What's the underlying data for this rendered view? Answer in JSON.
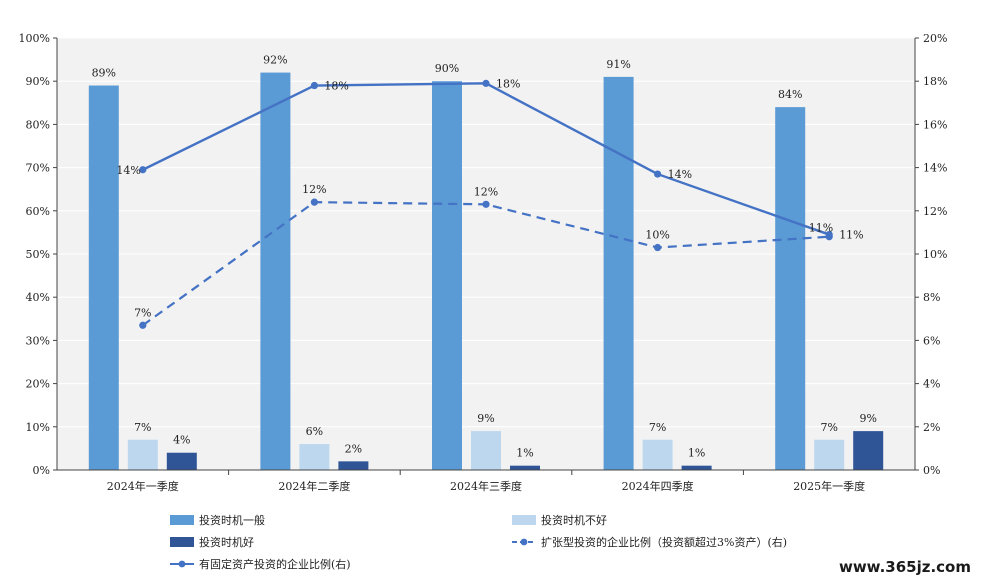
{
  "chart_data": {
    "type": "bar",
    "categories": [
      "2024年一季度",
      "2024年二季度",
      "2024年三季度",
      "2024年四季度",
      "2025年一季度"
    ],
    "left_axis": {
      "ylim": [
        0,
        100
      ],
      "ticks": [
        "0%",
        "10%",
        "20%",
        "30%",
        "40%",
        "50%",
        "60%",
        "70%",
        "80%",
        "90%",
        "100%"
      ]
    },
    "right_axis": {
      "ylim": [
        0,
        20
      ],
      "ticks": [
        "0%",
        "2%",
        "4%",
        "6%",
        "8%",
        "10%",
        "12%",
        "14%",
        "16%",
        "18%",
        "20%"
      ]
    },
    "series": [
      {
        "name": "投资时机一般",
        "kind": "bar",
        "axis": "left",
        "color": "#5b9bd5",
        "values": [
          89,
          92,
          90,
          91,
          84
        ],
        "labels": [
          "89%",
          "92%",
          "90%",
          "91%",
          "84%"
        ]
      },
      {
        "name": "投资时机不好",
        "kind": "bar",
        "axis": "left",
        "color": "#bdd7ee",
        "values": [
          7,
          6,
          9,
          7,
          7
        ],
        "labels": [
          "7%",
          "6%",
          "9%",
          "7%",
          "7%"
        ]
      },
      {
        "name": "投资时机好",
        "kind": "bar",
        "axis": "left",
        "color": "#2f5597",
        "values": [
          4,
          2,
          1,
          1,
          9
        ],
        "labels": [
          "4%",
          "2%",
          "1%",
          "1%",
          "9%"
        ]
      },
      {
        "name": "扩张型投资的企业比例（投资额超过3%资产）(右)",
        "kind": "line",
        "style": "dashed",
        "axis": "right",
        "color": "#4472c4",
        "values": [
          6.7,
          12.4,
          12.3,
          10.3,
          10.8
        ],
        "labels": [
          "7%",
          "12%",
          "12%",
          "10%",
          "11%"
        ]
      },
      {
        "name": "有固定资产投资的企业比例(右)",
        "kind": "line",
        "style": "solid",
        "axis": "right",
        "color": "#4472c4",
        "values": [
          13.9,
          17.8,
          17.9,
          13.7,
          10.9
        ],
        "labels": [
          "14%",
          "18%",
          "18%",
          "14%",
          "11%"
        ]
      }
    ],
    "grid": true,
    "legend_position": "bottom"
  },
  "watermark": "www.365jz.com"
}
